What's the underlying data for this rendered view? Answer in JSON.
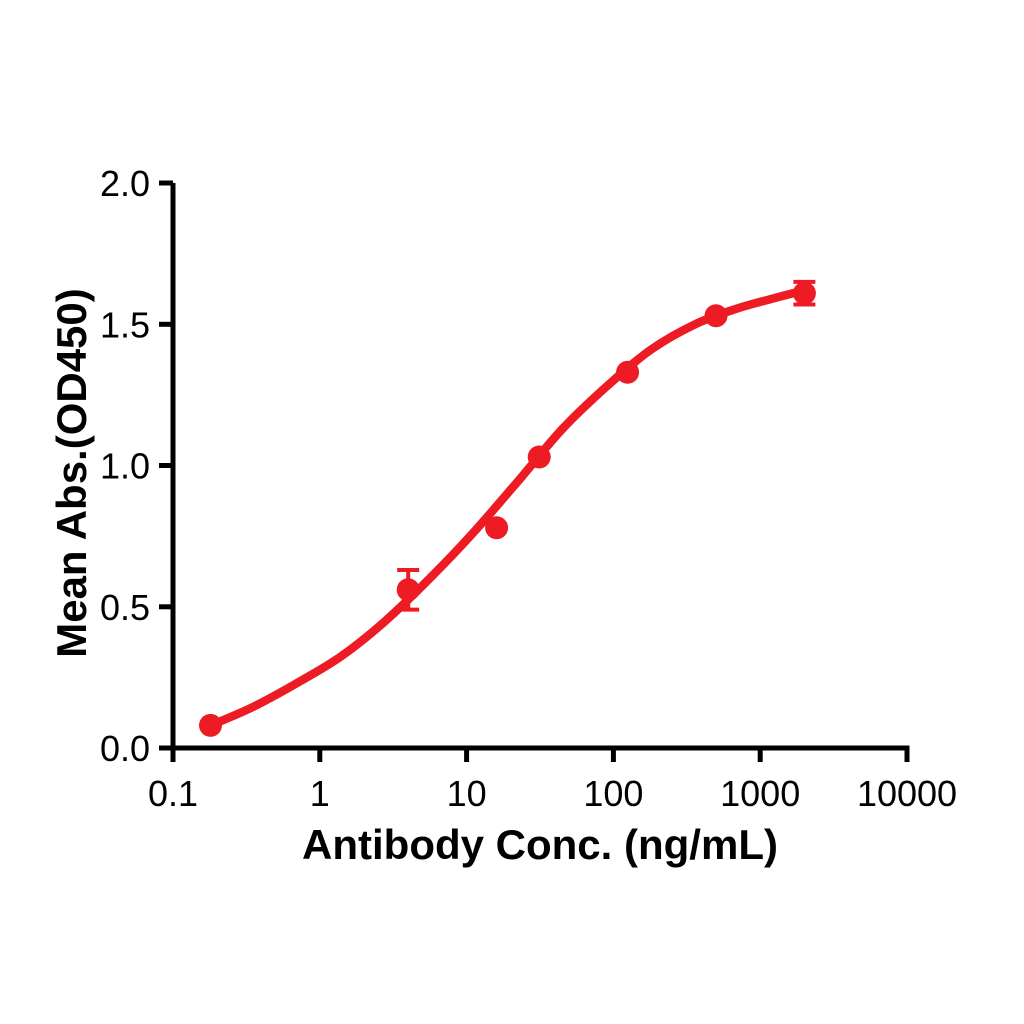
{
  "chart_data": {
    "type": "scatter",
    "subtype": "dose-response-curve-with-errorbars",
    "title": "",
    "xlabel": "Antibody Conc. (ng/mL)",
    "ylabel": "Mean Abs.(OD450)",
    "x_scale": "log10",
    "xlim": [
      0.1,
      10000
    ],
    "ylim": [
      0.0,
      2.0
    ],
    "grid": false,
    "legend": false,
    "background_color": "#ffffff",
    "axis_color": "#000000",
    "x_ticks": {
      "values": [
        0.1,
        1,
        10,
        100,
        1000,
        10000
      ],
      "labels": [
        "0.1",
        "1",
        "10",
        "100",
        "1000",
        "10000"
      ]
    },
    "y_ticks": {
      "values": [
        0.0,
        0.5,
        1.0,
        1.5,
        2.0
      ],
      "labels": [
        "0.0",
        "0.5",
        "1.0",
        "1.5",
        "2.0"
      ]
    },
    "series": [
      {
        "color": "#ED1C24",
        "marker": "filled-circle",
        "points": [
          {
            "x": 0.18,
            "y": 0.08,
            "err": 0
          },
          {
            "x": 4,
            "y": 0.56,
            "err": 0.07
          },
          {
            "x": 16,
            "y": 0.78,
            "err": 0
          },
          {
            "x": 31.25,
            "y": 1.03,
            "err": 0
          },
          {
            "x": 125,
            "y": 1.33,
            "err": 0
          },
          {
            "x": 500,
            "y": 1.53,
            "err": 0
          },
          {
            "x": 2000,
            "y": 1.61,
            "err": 0.04
          }
        ],
        "fit_curve": {
          "x": [
            0.18,
            0.35,
            0.7,
            1.4,
            2.8,
            5.6,
            11,
            22,
            45,
            90,
            180,
            360,
            700,
            1200,
            2000
          ],
          "y": [
            0.08,
            0.145,
            0.23,
            0.325,
            0.45,
            0.6,
            0.76,
            0.94,
            1.13,
            1.28,
            1.41,
            1.5,
            1.556,
            1.59,
            1.62
          ]
        }
      }
    ]
  }
}
